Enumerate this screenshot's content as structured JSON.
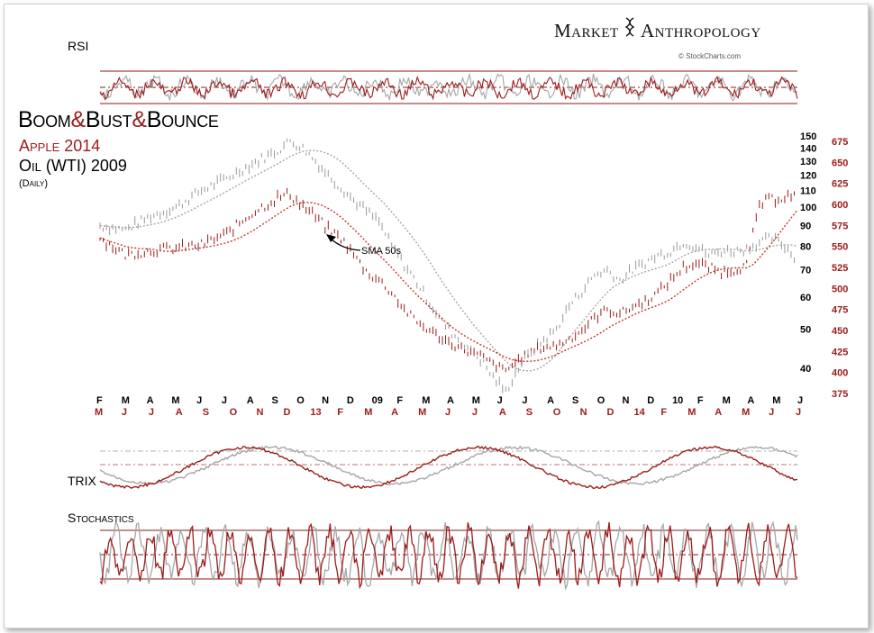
{
  "brand": {
    "left": "Market",
    "right": "Anthropology"
  },
  "credit": "© StockCharts.com",
  "title": {
    "part1": "Boom",
    "amp1": "&",
    "part2": "Bust",
    "amp2": "&",
    "part3": "Bounce"
  },
  "subtitle_red": "Apple 2014",
  "subtitle_black": "Oil (WTI) 2009",
  "subtitle_small": "(Daily)",
  "annotation": "SMA 50s",
  "panels": {
    "rsi": "RSI",
    "trix": "TRIX",
    "stochastics": "Stochastics"
  },
  "colors": {
    "red": "#9b1c1c",
    "gray": "#a6a6a6",
    "dark": "#333333",
    "rule": "#8b1a1a"
  },
  "chart_data": {
    "type": "line",
    "series": [
      {
        "name": "Apple 2014",
        "color": "#9b1c1c"
      },
      {
        "name": "Oil (WTI) 2009",
        "color": "#a6a6a6"
      }
    ],
    "axes": {
      "left_ticks_black": [
        "150",
        "140",
        "130",
        "120",
        "110",
        "100",
        "90",
        "80",
        "70",
        "60",
        "50",
        "40"
      ],
      "right_ticks_red": [
        "675",
        "650",
        "625",
        "600",
        "575",
        "550",
        "525",
        "500",
        "475",
        "450",
        "425",
        "400",
        "375"
      ],
      "x_top_black": [
        "F",
        "M",
        "A",
        "M",
        "J",
        "J",
        "A",
        "S",
        "O",
        "N",
        "D",
        "09",
        "F",
        "M",
        "A",
        "M",
        "J",
        "J",
        "A",
        "S",
        "O",
        "N",
        "D",
        "10",
        "F",
        "M",
        "A",
        "M",
        "J"
      ],
      "x_bottom_red": [
        "M",
        "J",
        "J",
        "A",
        "S",
        "O",
        "N",
        "D",
        "13",
        "F",
        "M",
        "A",
        "M",
        "J",
        "J",
        "A",
        "S",
        "O",
        "N",
        "D",
        "14",
        "F",
        "M",
        "A",
        "M",
        "J",
        "J"
      ]
    },
    "oil_points": [
      [
        0,
        90
      ],
      [
        4,
        88
      ],
      [
        8,
        95
      ],
      [
        12,
        100
      ],
      [
        16,
        110
      ],
      [
        20,
        118
      ],
      [
        24,
        128
      ],
      [
        28,
        138
      ],
      [
        30,
        146
      ],
      [
        32,
        140
      ],
      [
        34,
        130
      ],
      [
        36,
        120
      ],
      [
        38,
        112
      ],
      [
        40,
        104
      ],
      [
        42,
        98
      ],
      [
        44,
        92
      ],
      [
        46,
        80
      ],
      [
        48,
        72
      ],
      [
        50,
        65
      ],
      [
        52,
        58
      ],
      [
        54,
        52
      ],
      [
        56,
        48
      ],
      [
        58,
        45
      ],
      [
        60,
        42
      ],
      [
        62,
        38
      ],
      [
        64,
        35
      ],
      [
        66,
        40
      ],
      [
        68,
        44
      ],
      [
        70,
        47
      ],
      [
        72,
        50
      ],
      [
        74,
        57
      ],
      [
        76,
        62
      ],
      [
        78,
        68
      ],
      [
        80,
        70
      ],
      [
        82,
        66
      ],
      [
        84,
        70
      ],
      [
        86,
        73
      ],
      [
        88,
        76
      ],
      [
        90,
        78
      ],
      [
        92,
        82
      ],
      [
        94,
        80
      ],
      [
        96,
        76
      ],
      [
        98,
        78
      ],
      [
        100,
        78
      ],
      [
        102,
        79
      ],
      [
        104,
        82
      ],
      [
        106,
        84
      ],
      [
        108,
        80
      ],
      [
        110,
        74
      ]
    ],
    "apple_points": [
      [
        0,
        560
      ],
      [
        4,
        540
      ],
      [
        8,
        545
      ],
      [
        12,
        548
      ],
      [
        16,
        552
      ],
      [
        20,
        565
      ],
      [
        24,
        590
      ],
      [
        28,
        608
      ],
      [
        30,
        612
      ],
      [
        32,
        598
      ],
      [
        34,
        585
      ],
      [
        36,
        570
      ],
      [
        38,
        560
      ],
      [
        40,
        540
      ],
      [
        42,
        520
      ],
      [
        44,
        510
      ],
      [
        46,
        495
      ],
      [
        48,
        475
      ],
      [
        50,
        460
      ],
      [
        52,
        450
      ],
      [
        54,
        440
      ],
      [
        56,
        432
      ],
      [
        58,
        425
      ],
      [
        60,
        420
      ],
      [
        62,
        410
      ],
      [
        64,
        402
      ],
      [
        66,
        415
      ],
      [
        68,
        425
      ],
      [
        70,
        430
      ],
      [
        72,
        432
      ],
      [
        74,
        440
      ],
      [
        76,
        450
      ],
      [
        78,
        465
      ],
      [
        80,
        475
      ],
      [
        82,
        470
      ],
      [
        84,
        478
      ],
      [
        86,
        485
      ],
      [
        88,
        495
      ],
      [
        90,
        510
      ],
      [
        92,
        525
      ],
      [
        94,
        530
      ],
      [
        96,
        525
      ],
      [
        98,
        520
      ],
      [
        100,
        522
      ],
      [
        102,
        528
      ],
      [
        104,
        600
      ],
      [
        106,
        606
      ],
      [
        108,
        610
      ]
    ],
    "notes": "Overlay of Apple 2014 (red, right axis) and Crude Oil WTI 2009 (gray, left axis) daily price with 50-day SMAs, RSI, TRIX and Stochastics panels."
  }
}
